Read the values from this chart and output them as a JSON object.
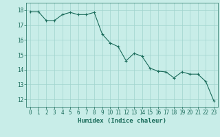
{
  "x": [
    0,
    1,
    2,
    3,
    4,
    5,
    6,
    7,
    8,
    9,
    10,
    11,
    12,
    13,
    14,
    15,
    16,
    17,
    18,
    19,
    20,
    21,
    22,
    23
  ],
  "y": [
    17.9,
    17.9,
    17.3,
    17.3,
    17.7,
    17.85,
    17.7,
    17.7,
    17.85,
    16.4,
    15.8,
    15.55,
    14.6,
    15.1,
    14.9,
    14.1,
    13.9,
    13.85,
    13.45,
    13.85,
    13.7,
    13.7,
    13.2,
    11.9
  ],
  "line_color": "#1a6b5a",
  "marker": "+",
  "marker_size": 3,
  "marker_color": "#1a6b5a",
  "bg_color": "#c8ede8",
  "grid_color": "#a0d4ce",
  "axis_color": "#1a6b5a",
  "xlabel": "Humidex (Indice chaleur)",
  "xlabel_fontsize": 6.5,
  "ylim": [
    11.5,
    18.5
  ],
  "xlim": [
    -0.5,
    23.5
  ],
  "yticks": [
    12,
    13,
    14,
    15,
    16,
    17,
    18
  ],
  "xticks": [
    0,
    1,
    2,
    3,
    4,
    5,
    6,
    7,
    8,
    9,
    10,
    11,
    12,
    13,
    14,
    15,
    16,
    17,
    18,
    19,
    20,
    21,
    22,
    23
  ],
  "tick_fontsize": 5.5,
  "line_width": 0.8
}
